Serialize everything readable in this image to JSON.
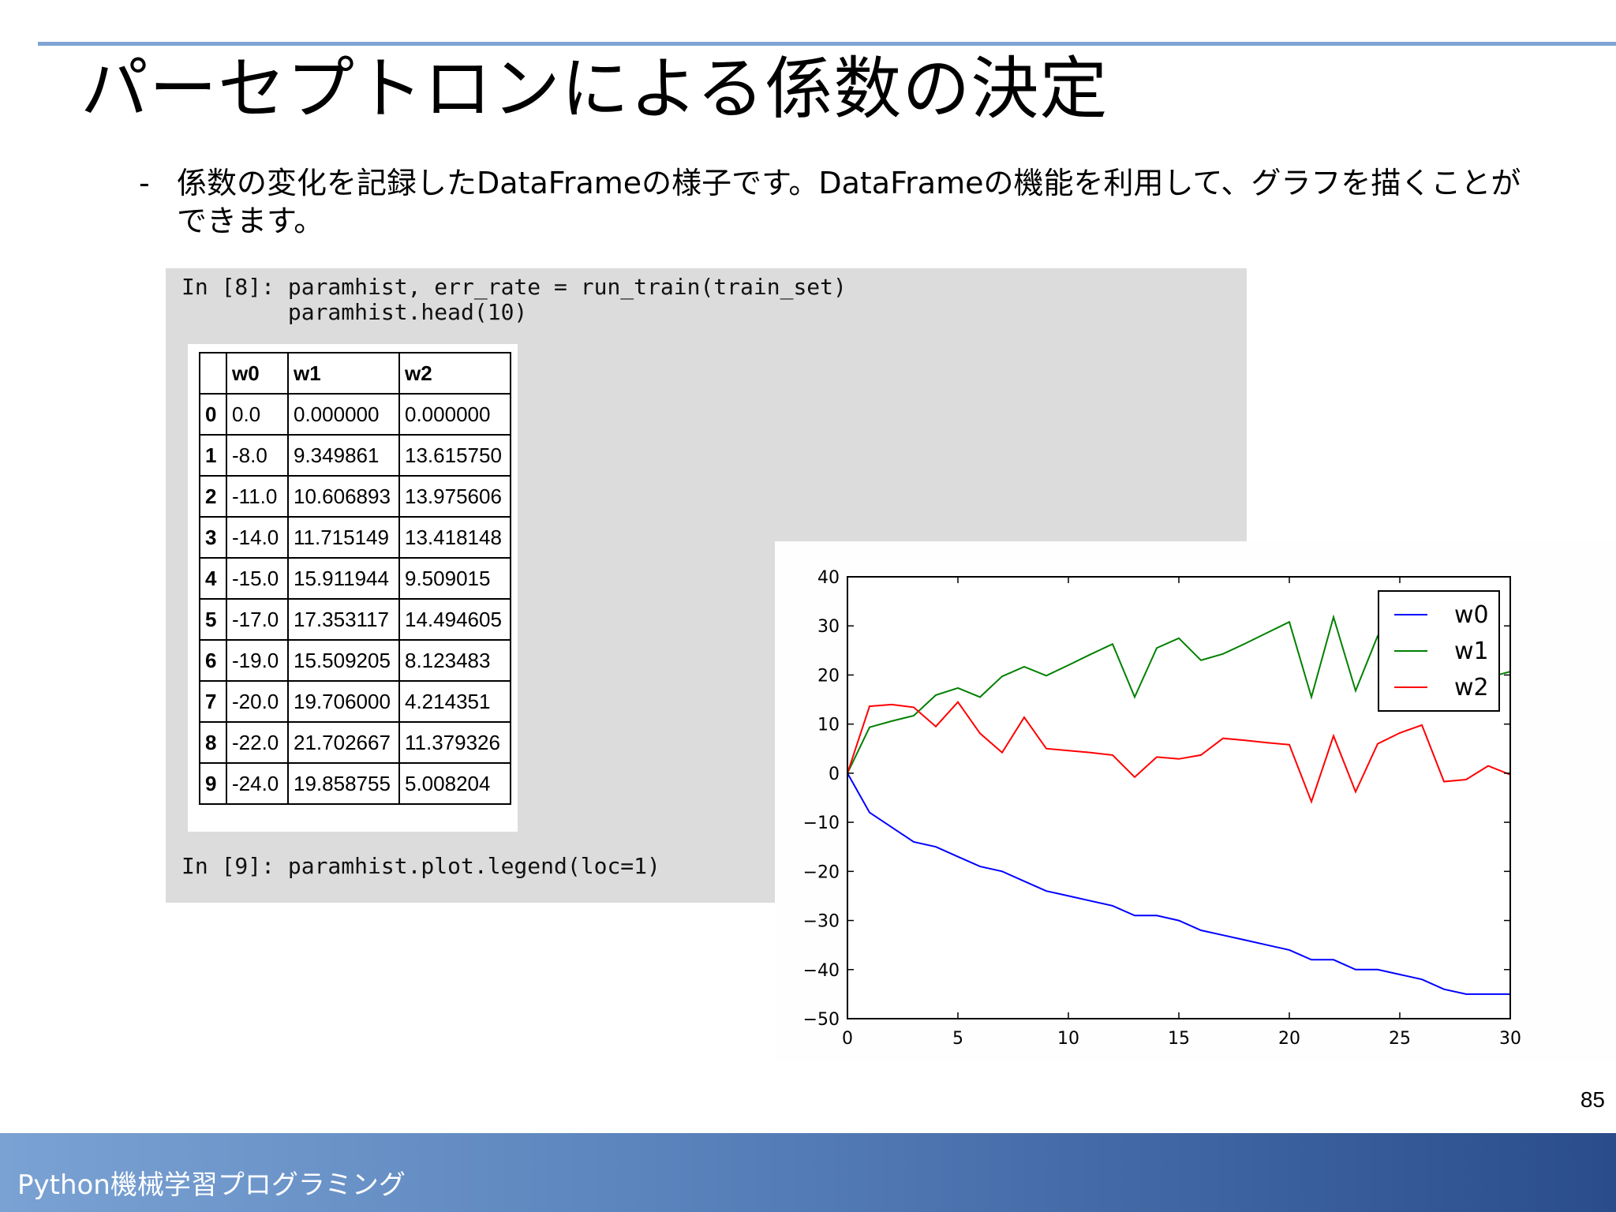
{
  "slide": {
    "title": "パーセプトロンによる係数の決定",
    "bullet_dash": "-",
    "bullet_text": "係数の変化を記録したDataFrameの様子です。DataFrameの機能を利用して、グラフを描くことができます。",
    "page_number": "85",
    "footer": "Python機械学習プログラミング"
  },
  "notebook": {
    "cell8_line1": "In [8]: paramhist, err_rate = run_train(train_set)",
    "cell8_line2": "        paramhist.head(10)",
    "cell9_line1": "In [9]: paramhist.plot.legend(loc=1)"
  },
  "dataframe": {
    "columns": [
      "w0",
      "w1",
      "w2"
    ],
    "rows": [
      [
        "0",
        "0.0",
        "0.000000",
        "0.000000"
      ],
      [
        "1",
        "-8.0",
        "9.349861",
        "13.615750"
      ],
      [
        "2",
        "-11.0",
        "10.606893",
        "13.975606"
      ],
      [
        "3",
        "-14.0",
        "11.715149",
        "13.418148"
      ],
      [
        "4",
        "-15.0",
        "15.911944",
        "9.509015"
      ],
      [
        "5",
        "-17.0",
        "17.353117",
        "14.494605"
      ],
      [
        "6",
        "-19.0",
        "15.509205",
        "8.123483"
      ],
      [
        "7",
        "-20.0",
        "19.706000",
        "4.214351"
      ],
      [
        "8",
        "-22.0",
        "21.702667",
        "11.379326"
      ],
      [
        "9",
        "-24.0",
        "19.858755",
        "5.008204"
      ]
    ]
  },
  "chart_data": {
    "type": "line",
    "title": "",
    "xlabel": "",
    "ylabel": "",
    "xlim": [
      0,
      30
    ],
    "ylim": [
      -50,
      40
    ],
    "xticks": [
      0,
      5,
      10,
      15,
      20,
      25,
      30
    ],
    "yticks": [
      40,
      30,
      20,
      10,
      0,
      -10,
      -20,
      -30,
      -40,
      -50
    ],
    "grid": false,
    "legend_position": "top-right",
    "x": [
      0,
      1,
      2,
      3,
      4,
      5,
      6,
      7,
      8,
      9,
      10,
      11,
      12,
      13,
      14,
      15,
      16,
      17,
      18,
      19,
      20,
      21,
      22,
      23,
      24,
      25,
      26,
      27,
      28,
      29,
      30
    ],
    "series": [
      {
        "name": "w0",
        "color": "#0000ff",
        "values": [
          0,
          -8,
          -11,
          -14,
          -15,
          -17,
          -19,
          -20,
          -22,
          -24,
          -25,
          -26,
          -27,
          -29,
          -29,
          -30,
          -32,
          -33,
          -34,
          -35,
          -36,
          -38,
          -38,
          -40,
          -40,
          -41,
          -42,
          -44,
          -45,
          -45,
          -45
        ]
      },
      {
        "name": "w1",
        "color": "#008000",
        "values": [
          0,
          9.35,
          10.61,
          11.72,
          15.91,
          17.35,
          15.51,
          19.71,
          21.7,
          19.86,
          22,
          24.2,
          26.3,
          15.5,
          25.5,
          27.5,
          23,
          24.3,
          26.4,
          28.6,
          30.8,
          15.5,
          31.8,
          16.8,
          28,
          30,
          32,
          31,
          30,
          19.5,
          20.7
        ]
      },
      {
        "name": "w2",
        "color": "#ff0000",
        "values": [
          0,
          13.62,
          13.98,
          13.42,
          9.51,
          14.49,
          8.12,
          4.21,
          11.38,
          5.01,
          4.6,
          4.2,
          3.7,
          -0.8,
          3.3,
          2.9,
          3.7,
          7.1,
          6.7,
          6.2,
          5.8,
          -5.8,
          7.6,
          -3.8,
          6,
          8.2,
          9.8,
          -1.7,
          -1.3,
          1.5,
          -0.3
        ]
      }
    ]
  }
}
